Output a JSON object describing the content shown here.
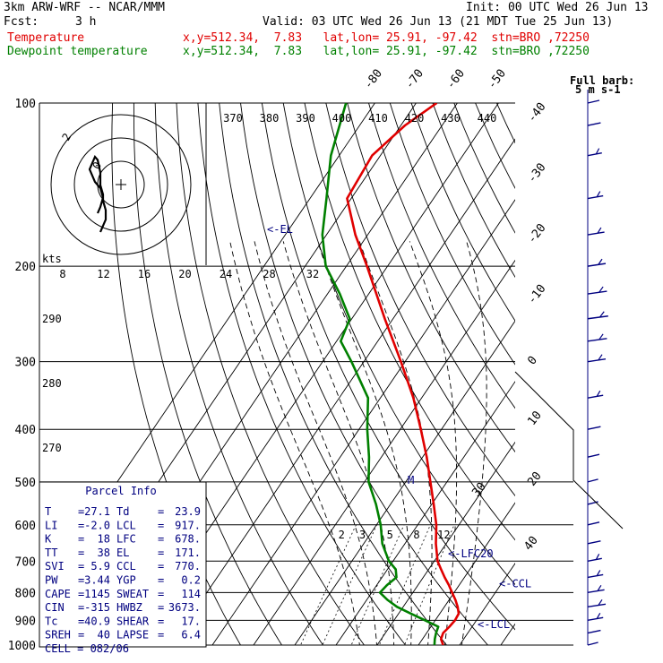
{
  "header": {
    "model": "3km ARW-WRF -- NCAR/MMM",
    "init": "Init: 00 UTC Wed 26 Jun 13",
    "fcst_label": "Fcst:",
    "fcst_value": "3 h",
    "valid": "Valid: 03 UTC Wed 26 Jun 13 (21 MDT Tue 25 Jun 13)",
    "temp_label": "Temperature",
    "temp_loc": "x,y=512.34,  7.83   lat,lon= 25.91, -97.42  stn=BRO ,72250",
    "dew_label": "Dewpoint temperature",
    "dew_loc": "x,y=512.34,  7.83   lat,lon= 25.91, -97.42  stn=BRO ,72250"
  },
  "colors": {
    "temperature": "#e00000",
    "dewpoint": "#008000",
    "annotation": "#000080",
    "grid": "#000000"
  },
  "wind_key": {
    "line1": "Full barb:",
    "line2": "5 m s-1"
  },
  "hodograph": {
    "units": "kts",
    "label_a": "2",
    "label_b": "0"
  },
  "parcel_info": {
    "title": "Parcel Info",
    "rows": [
      {
        "k1": "T",
        "v1": "27.1",
        "k2": "Td",
        "v2": "23.9"
      },
      {
        "k1": "LI",
        "v1": "-2.0",
        "k2": "LCL",
        "v2": "917."
      },
      {
        "k1": "K",
        "v1": "18",
        "k2": "LFC",
        "v2": "678."
      },
      {
        "k1": "TT",
        "v1": "38",
        "k2": "EL",
        "v2": "171."
      },
      {
        "k1": "SVI",
        "v1": "5.9",
        "k2": "CCL",
        "v2": "770."
      },
      {
        "k1": "PW",
        "v1": "3.44",
        "k2": "YGP",
        "v2": "0.2"
      },
      {
        "k1": "CAPE",
        "v1": "1145",
        "k2": "SWEAT",
        "v2": "114"
      },
      {
        "k1": "CIN",
        "v1": "-315",
        "k2": "HWBZ",
        "v2": "3673."
      },
      {
        "k1": "Tc",
        "v1": "40.9",
        "k2": "SHEAR",
        "v2": "17."
      },
      {
        "k1": "SREH",
        "v1": "40",
        "k2": "LAPSE",
        "v2": "6.4"
      }
    ],
    "cell_label": "CELL",
    "cell_value": "082/06"
  },
  "chart_data": {
    "type": "line",
    "title": "3km ARW-WRF -- NCAR/MMM",
    "xlabel": "",
    "ylabel": "",
    "pressure_levels": [
      1000,
      900,
      800,
      700,
      600,
      500,
      400,
      300,
      200,
      100
    ],
    "pressure_tick_labels": [
      "1000",
      "900",
      "800",
      "700",
      "600",
      "500",
      "400",
      "300",
      "200",
      "100"
    ],
    "isotherm_labels": [
      "-80",
      "-70",
      "-60",
      "-50",
      "-40",
      "-30",
      "-20",
      "-10",
      "0",
      "10",
      "20",
      "30",
      "40"
    ],
    "isotherm_values": [
      -80,
      -70,
      -60,
      -50,
      -40,
      -30,
      -20,
      -10,
      0,
      10,
      20,
      30,
      40
    ],
    "theta_labels": [
      "370",
      "380",
      "390",
      "400",
      "410",
      "420",
      "430",
      "440"
    ],
    "theta_values": [
      370,
      380,
      390,
      400,
      410,
      420,
      430,
      440
    ],
    "dry_adiabat_labels": [
      "290",
      "280",
      "270"
    ],
    "dry_adiabat_values": [
      290,
      280,
      270
    ],
    "mixing_ratio_labels": [
      "2",
      "3",
      "5",
      "8",
      "12"
    ],
    "mixing_ratio_values": [
      2,
      3,
      5,
      8,
      12
    ],
    "wetbulb_labels": [
      "8",
      "12",
      "16",
      "20",
      "24",
      "28",
      "32"
    ],
    "wetbulb_values": [
      8,
      12,
      16,
      20,
      24,
      28,
      32
    ],
    "annotations": [
      {
        "text": "<-EL",
        "p": 171
      },
      {
        "text": "<-LFC20",
        "p": 678
      },
      {
        "text": "<-CCL",
        "p": 770
      },
      {
        "text": "<-LCL",
        "p": 917
      }
    ],
    "series": [
      {
        "name": "Temperature",
        "points": [
          {
            "p": 1000,
            "t": 26.0
          },
          {
            "p": 975,
            "t": 24.5
          },
          {
            "p": 950,
            "t": 24.0
          },
          {
            "p": 925,
            "t": 24.5
          },
          {
            "p": 900,
            "t": 24.8
          },
          {
            "p": 875,
            "t": 24.6
          },
          {
            "p": 850,
            "t": 23.2
          },
          {
            "p": 825,
            "t": 21.5
          },
          {
            "p": 800,
            "t": 19.5
          },
          {
            "p": 775,
            "t": 17.5
          },
          {
            "p": 750,
            "t": 15.2
          },
          {
            "p": 725,
            "t": 13.0
          },
          {
            "p": 700,
            "t": 10.8
          },
          {
            "p": 650,
            "t": 7.5
          },
          {
            "p": 600,
            "t": 4.5
          },
          {
            "p": 550,
            "t": 0.5
          },
          {
            "p": 500,
            "t": -4.0
          },
          {
            "p": 450,
            "t": -9.0
          },
          {
            "p": 400,
            "t": -15.0
          },
          {
            "p": 350,
            "t": -22.0
          },
          {
            "p": 300,
            "t": -31.0
          },
          {
            "p": 250,
            "t": -42.0
          },
          {
            "p": 200,
            "t": -55.0
          },
          {
            "p": 175,
            "t": -63.0
          },
          {
            "p": 150,
            "t": -71.0
          },
          {
            "p": 125,
            "t": -72.0
          },
          {
            "p": 110,
            "t": -69.0
          },
          {
            "p": 100,
            "t": -65.0
          }
        ]
      },
      {
        "name": "Dewpoint temperature",
        "points": [
          {
            "p": 1000,
            "t": 23.9
          },
          {
            "p": 975,
            "t": 23.0
          },
          {
            "p": 950,
            "t": 22.3
          },
          {
            "p": 925,
            "t": 21.8
          },
          {
            "p": 900,
            "t": 17.5
          },
          {
            "p": 875,
            "t": 13.0
          },
          {
            "p": 850,
            "t": 8.5
          },
          {
            "p": 825,
            "t": 5.0
          },
          {
            "p": 800,
            "t": 2.0
          },
          {
            "p": 775,
            "t": 2.5
          },
          {
            "p": 750,
            "t": 3.5
          },
          {
            "p": 725,
            "t": 2.0
          },
          {
            "p": 700,
            "t": -1.0
          },
          {
            "p": 650,
            "t": -5.5
          },
          {
            "p": 600,
            "t": -9.0
          },
          {
            "p": 550,
            "t": -13.5
          },
          {
            "p": 500,
            "t": -19.0
          },
          {
            "p": 450,
            "t": -23.0
          },
          {
            "p": 400,
            "t": -28.0
          },
          {
            "p": 350,
            "t": -33.0
          },
          {
            "p": 300,
            "t": -43.0
          },
          {
            "p": 275,
            "t": -49.0
          },
          {
            "p": 250,
            "t": -50.5
          },
          {
            "p": 225,
            "t": -57.0
          },
          {
            "p": 200,
            "t": -65.0
          },
          {
            "p": 175,
            "t": -71.0
          },
          {
            "p": 150,
            "t": -76.0
          },
          {
            "p": 125,
            "t": -82.0
          },
          {
            "p": 100,
            "t": -87.0
          }
        ]
      }
    ],
    "hodograph_points": [
      [
        -2,
        8
      ],
      [
        -1,
        10
      ],
      [
        0,
        13
      ],
      [
        -1,
        16
      ],
      [
        -3,
        18
      ],
      [
        -4,
        20
      ],
      [
        -5,
        22
      ],
      [
        -4,
        24
      ],
      [
        -3,
        26
      ],
      [
        -2,
        25
      ],
      [
        -1,
        21
      ],
      [
        -1,
        17
      ],
      [
        0,
        14
      ],
      [
        0,
        12
      ],
      [
        1,
        9
      ],
      [
        1,
        6
      ],
      [
        0,
        4
      ],
      [
        -1,
        2
      ]
    ],
    "hodograph_rings_kts": [
      10,
      20,
      30
    ],
    "wind_profile": [
      {
        "p": 1000,
        "spd": 4
      },
      {
        "p": 950,
        "spd": 6
      },
      {
        "p": 900,
        "spd": 8
      },
      {
        "p": 850,
        "spd": 10
      },
      {
        "p": 800,
        "spd": 9
      },
      {
        "p": 750,
        "spd": 8
      },
      {
        "p": 700,
        "spd": 7
      },
      {
        "p": 650,
        "spd": 6
      },
      {
        "p": 600,
        "spd": 5
      },
      {
        "p": 550,
        "spd": 4
      },
      {
        "p": 500,
        "spd": 4
      },
      {
        "p": 450,
        "spd": 5
      },
      {
        "p": 400,
        "spd": 6
      },
      {
        "p": 350,
        "spd": 8
      },
      {
        "p": 300,
        "spd": 10
      },
      {
        "p": 275,
        "spd": 11
      },
      {
        "p": 250,
        "spd": 12
      },
      {
        "p": 225,
        "spd": 11
      },
      {
        "p": 200,
        "spd": 10
      },
      {
        "p": 175,
        "spd": 9
      },
      {
        "p": 150,
        "spd": 8
      },
      {
        "p": 125,
        "spd": 7
      },
      {
        "p": 110,
        "spd": 6
      },
      {
        "p": 100,
        "spd": 5
      }
    ]
  }
}
